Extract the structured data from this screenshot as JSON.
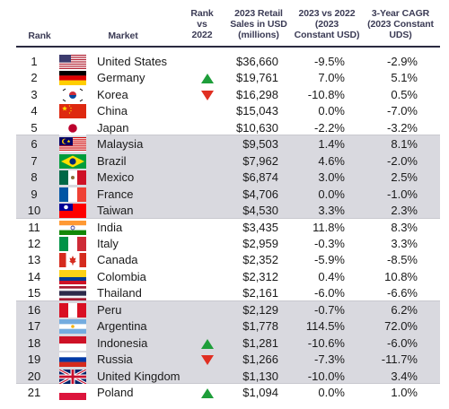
{
  "headers": {
    "rank": "Rank",
    "market": "Market",
    "rank_change": [
      "Rank",
      "vs",
      "2022"
    ],
    "sales": [
      "2023 Retail",
      "Sales in USD",
      "(millions)"
    ],
    "yoy": [
      "2023 vs 2022",
      "(2023",
      "Constant USD)"
    ],
    "cagr": [
      "3-Year CAGR",
      "(2023 Constant",
      "UDS)"
    ]
  },
  "colors": {
    "up_arrow": "#1e9e3a",
    "down_arrow": "#e02f22",
    "band": "#d9d9df"
  },
  "chart_data": {
    "type": "table",
    "columns": [
      "Rank",
      "Market",
      "Rank vs 2022",
      "2023 Retail Sales in USD (millions)",
      "2023 vs 2022 (2023 Constant USD)",
      "3-Year CAGR (2023 Constant UDS)"
    ],
    "rows": [
      {
        "rank": "1",
        "flag": "us-flag-icon",
        "market": "United States",
        "change": "",
        "sales": "$36,660",
        "yoy": "-9.5%",
        "cagr": "-2.9%"
      },
      {
        "rank": "2",
        "flag": "germany-flag-icon",
        "market": "Germany",
        "change": "up",
        "sales": "$19,761",
        "yoy": "7.0%",
        "cagr": "5.1%"
      },
      {
        "rank": "3",
        "flag": "korea-flag-icon",
        "market": "Korea",
        "change": "down",
        "sales": "$16,298",
        "yoy": "-10.8%",
        "cagr": "0.5%"
      },
      {
        "rank": "4",
        "flag": "china-flag-icon",
        "market": "China",
        "change": "",
        "sales": "$15,043",
        "yoy": "0.0%",
        "cagr": "-7.0%"
      },
      {
        "rank": "5",
        "flag": "japan-flag-icon",
        "market": "Japan",
        "change": "",
        "sales": "$10,630",
        "yoy": "-2.2%",
        "cagr": "-3.2%"
      },
      {
        "rank": "6",
        "flag": "malaysia-flag-icon",
        "market": "Malaysia",
        "change": "",
        "sales": "$9,503",
        "yoy": "1.4%",
        "cagr": "8.1%"
      },
      {
        "rank": "7",
        "flag": "brazil-flag-icon",
        "market": "Brazil",
        "change": "",
        "sales": "$7,962",
        "yoy": "4.6%",
        "cagr": "-2.0%"
      },
      {
        "rank": "8",
        "flag": "mexico-flag-icon",
        "market": "Mexico",
        "change": "",
        "sales": "$6,874",
        "yoy": "3.0%",
        "cagr": "2.5%"
      },
      {
        "rank": "9",
        "flag": "france-flag-icon",
        "market": "France",
        "change": "",
        "sales": "$4,706",
        "yoy": "0.0%",
        "cagr": "-1.0%"
      },
      {
        "rank": "10",
        "flag": "taiwan-flag-icon",
        "market": "Taiwan",
        "change": "",
        "sales": "$4,530",
        "yoy": "3.3%",
        "cagr": "2.3%"
      },
      {
        "rank": "11",
        "flag": "india-flag-icon",
        "market": "India",
        "change": "",
        "sales": "$3,435",
        "yoy": "11.8%",
        "cagr": "8.3%"
      },
      {
        "rank": "12",
        "flag": "italy-flag-icon",
        "market": "Italy",
        "change": "",
        "sales": "$2,959",
        "yoy": "-0.3%",
        "cagr": "3.3%"
      },
      {
        "rank": "13",
        "flag": "canada-flag-icon",
        "market": "Canada",
        "change": "",
        "sales": "$2,352",
        "yoy": "-5.9%",
        "cagr": "-8.5%"
      },
      {
        "rank": "14",
        "flag": "colombia-flag-icon",
        "market": "Colombia",
        "change": "",
        "sales": "$2,312",
        "yoy": "0.4%",
        "cagr": "10.8%"
      },
      {
        "rank": "15",
        "flag": "thailand-flag-icon",
        "market": "Thailand",
        "change": "",
        "sales": "$2,161",
        "yoy": "-6.0%",
        "cagr": "-6.6%"
      },
      {
        "rank": "16",
        "flag": "peru-flag-icon",
        "market": "Peru",
        "change": "",
        "sales": "$2,129",
        "yoy": "-0.7%",
        "cagr": "6.2%"
      },
      {
        "rank": "17",
        "flag": "argentina-flag-icon",
        "market": "Argentina",
        "change": "",
        "sales": "$1,778",
        "yoy": "114.5%",
        "cagr": "72.0%"
      },
      {
        "rank": "18",
        "flag": "indonesia-flag-icon",
        "market": "Indonesia",
        "change": "up",
        "sales": "$1,281",
        "yoy": "-10.6%",
        "cagr": "-6.0%"
      },
      {
        "rank": "19",
        "flag": "russia-flag-icon",
        "market": "Russia",
        "change": "down",
        "sales": "$1,266",
        "yoy": "-7.3%",
        "cagr": "-11.7%"
      },
      {
        "rank": "20",
        "flag": "uk-flag-icon",
        "market": "United Kingdom",
        "change": "",
        "sales": "$1,130",
        "yoy": "-10.0%",
        "cagr": "3.4%"
      },
      {
        "rank": "21",
        "flag": "poland-flag-icon",
        "market": "Poland",
        "change": "up",
        "sales": "$1,094",
        "yoy": "0.0%",
        "cagr": "1.0%"
      }
    ]
  }
}
